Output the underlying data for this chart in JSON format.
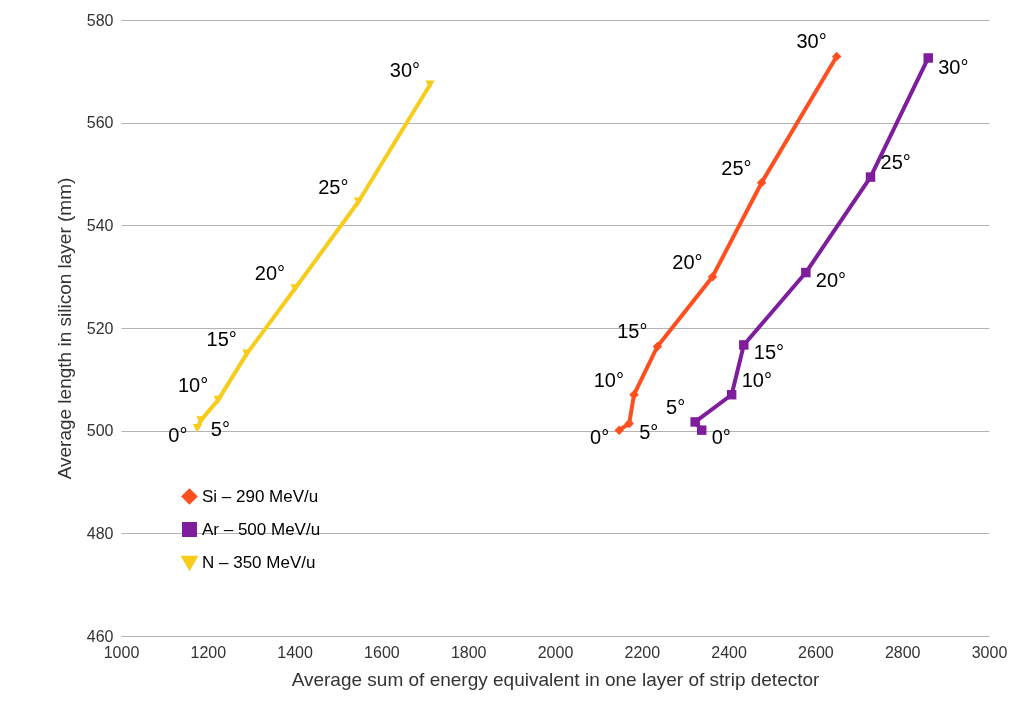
{
  "chart_data": {
    "type": "line",
    "xlabel": "Average sum of energy equivalent in one layer of strip detector",
    "ylabel": "Average length in silicon layer (mm)",
    "xlim": [
      1000,
      3000
    ],
    "xticks": [
      1000,
      1200,
      1400,
      1600,
      1800,
      2000,
      2200,
      2400,
      2600,
      2800,
      3000
    ],
    "ylim": [
      460,
      580
    ],
    "yticks": [
      460,
      480,
      500,
      520,
      540,
      560,
      580
    ],
    "grid": "y",
    "legend": "bottom left",
    "series": [
      {
        "name": "Si – 290 MeV/u",
        "color": "#ff4f1f",
        "marker": "diamond",
        "x": [
          2148,
          2171,
          2182,
          2236,
          2363,
          2476,
          2649
        ],
        "values": [
          500.1,
          501.4,
          507,
          516.4,
          530,
          548.3,
          572.9
        ]
      },
      {
        "name": "Ar – 500 MeV/u",
        "color": "#7e1e9c",
        "marker": "square",
        "x": [
          2338,
          2323,
          2407,
          2435,
          2578,
          2727,
          2860
        ],
        "values": [
          500.1,
          501.7,
          507,
          516.7,
          530.8,
          549.4,
          572.6
        ]
      },
      {
        "name": "N – 350 MeV/u",
        "color": "#f8cc1b",
        "marker": "triangle-down",
        "x": [
          1176,
          1184,
          1224,
          1290,
          1401,
          1547,
          1712
        ],
        "values": [
          500.5,
          502,
          506,
          515,
          527.7,
          544.6,
          567.4
        ]
      }
    ],
    "annotations": [
      {
        "text": "0°",
        "x": 2148,
        "y": 500.1
      },
      {
        "text": "5°",
        "x": 2171,
        "y": 501.4
      },
      {
        "text": "10°",
        "x": 2182,
        "y": 507
      },
      {
        "text": "15°",
        "x": 2236,
        "y": 516.4
      },
      {
        "text": "20°",
        "x": 2363,
        "y": 530
      },
      {
        "text": "25°",
        "x": 2476,
        "y": 548.3
      },
      {
        "text": "30°",
        "x": 2649,
        "y": 572.9
      },
      {
        "text": "0°",
        "x": 2338,
        "y": 500.1
      },
      {
        "text": "5°",
        "x": 2323,
        "y": 501.7
      },
      {
        "text": "10°",
        "x": 2407,
        "y": 507
      },
      {
        "text": "15°",
        "x": 2435,
        "y": 516.7
      },
      {
        "text": "20°",
        "x": 2578,
        "y": 530.8
      },
      {
        "text": "25°",
        "x": 2727,
        "y": 549.4
      },
      {
        "text": "30°",
        "x": 2860,
        "y": 572.6
      },
      {
        "text": "0°",
        "x": 1176,
        "y": 500.5
      },
      {
        "text": "5°",
        "x": 1184,
        "y": 502
      },
      {
        "text": "10°",
        "x": 1224,
        "y": 506
      },
      {
        "text": "15°",
        "x": 1290,
        "y": 515
      },
      {
        "text": "20°",
        "x": 1401,
        "y": 527.7
      },
      {
        "text": "25°",
        "x": 1547,
        "y": 544.6
      },
      {
        "text": "30°",
        "x": 1712,
        "y": 567.4
      }
    ]
  }
}
